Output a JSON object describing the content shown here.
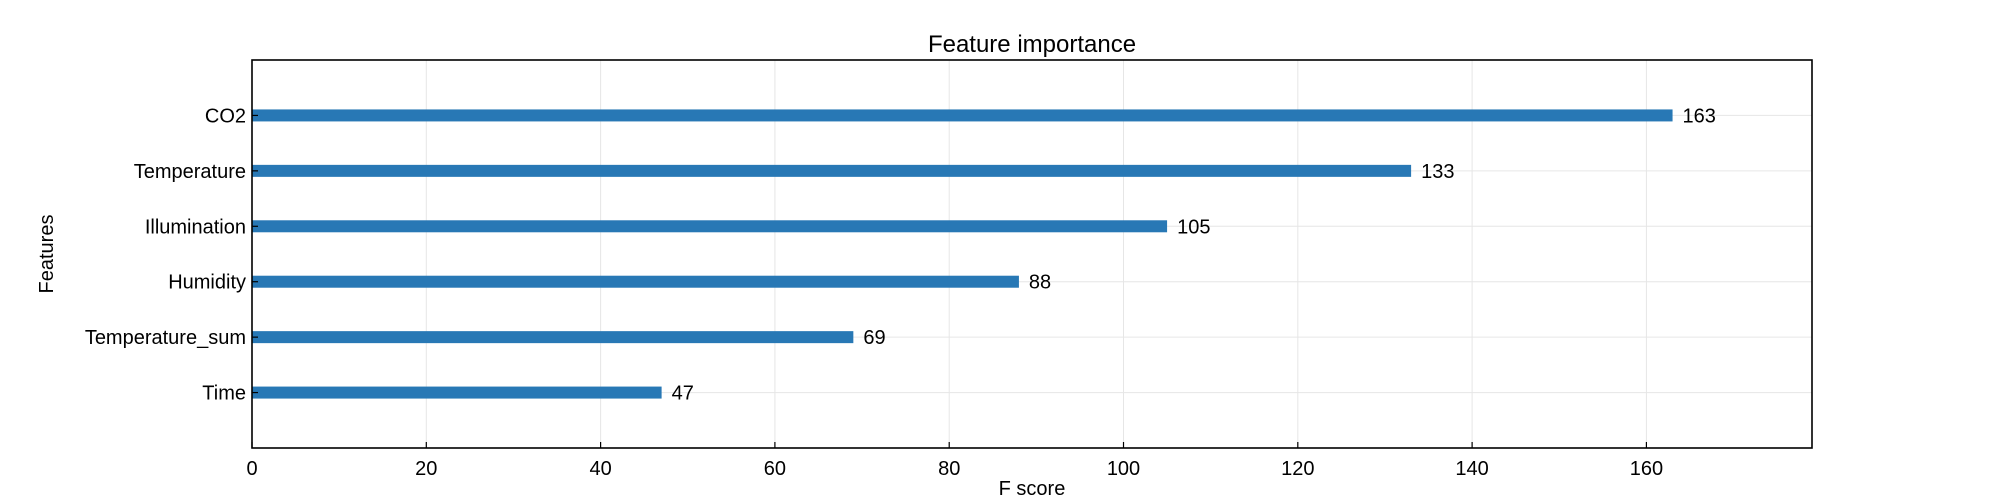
{
  "chart_data": {
    "type": "bar",
    "orientation": "horizontal",
    "title": "Feature importance",
    "xlabel": "F score",
    "ylabel": "Features",
    "categories": [
      "CO2",
      "Temperature",
      "Illumination",
      "Humidity",
      "Temperature_sum",
      "Time"
    ],
    "values": [
      163,
      133,
      105,
      88,
      69,
      47
    ],
    "xlim": [
      0,
      179
    ],
    "xticks": [
      0,
      20,
      40,
      60,
      80,
      100,
      120,
      140,
      160
    ],
    "grid": true,
    "bar_color": "#2878b5",
    "show_value_labels": true
  }
}
